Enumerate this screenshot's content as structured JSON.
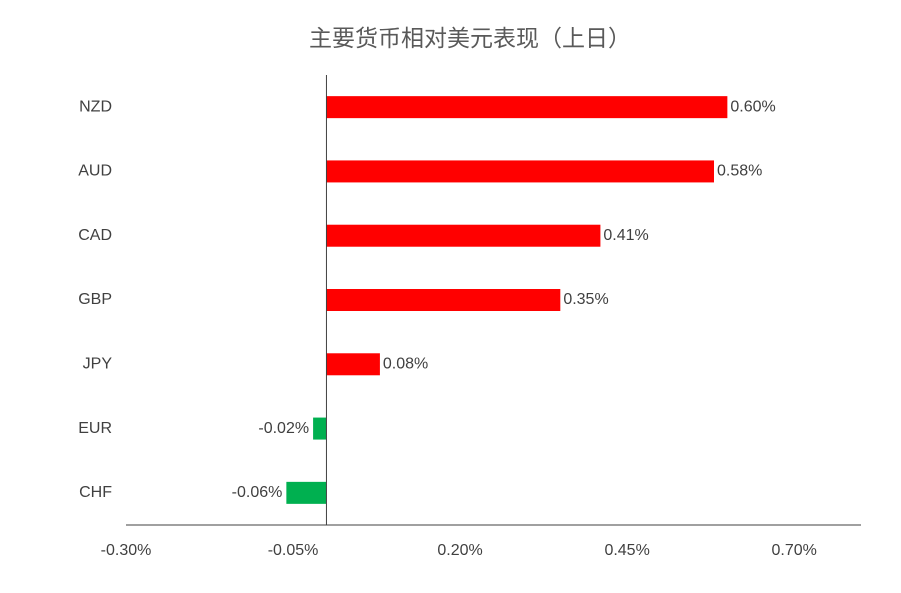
{
  "chart_data": {
    "type": "hbar",
    "title": "主要货币相对美元表现（上日）",
    "categories": [
      "NZD",
      "AUD",
      "CAD",
      "GBP",
      "JPY",
      "EUR",
      "CHF"
    ],
    "values": [
      0.6,
      0.58,
      0.41,
      0.35,
      0.08,
      -0.02,
      -0.06
    ],
    "value_labels": [
      "0.60%",
      "0.58%",
      "0.41%",
      "0.35%",
      "0.08%",
      "-0.02%",
      "-0.06%"
    ],
    "colors": [
      "#ff0000",
      "#ff0000",
      "#ff0000",
      "#ff0000",
      "#ff0000",
      "#00b050",
      "#00b050"
    ],
    "xlim": [
      -0.3,
      0.8
    ],
    "xticks": [
      {
        "value": -0.3,
        "label": "-0.30%"
      },
      {
        "value": -0.05,
        "label": "-0.05%"
      },
      {
        "value": 0.2,
        "label": "0.20%"
      },
      {
        "value": 0.45,
        "label": "0.45%"
      },
      {
        "value": 0.7,
        "label": "0.70%"
      }
    ],
    "grid": false
  }
}
